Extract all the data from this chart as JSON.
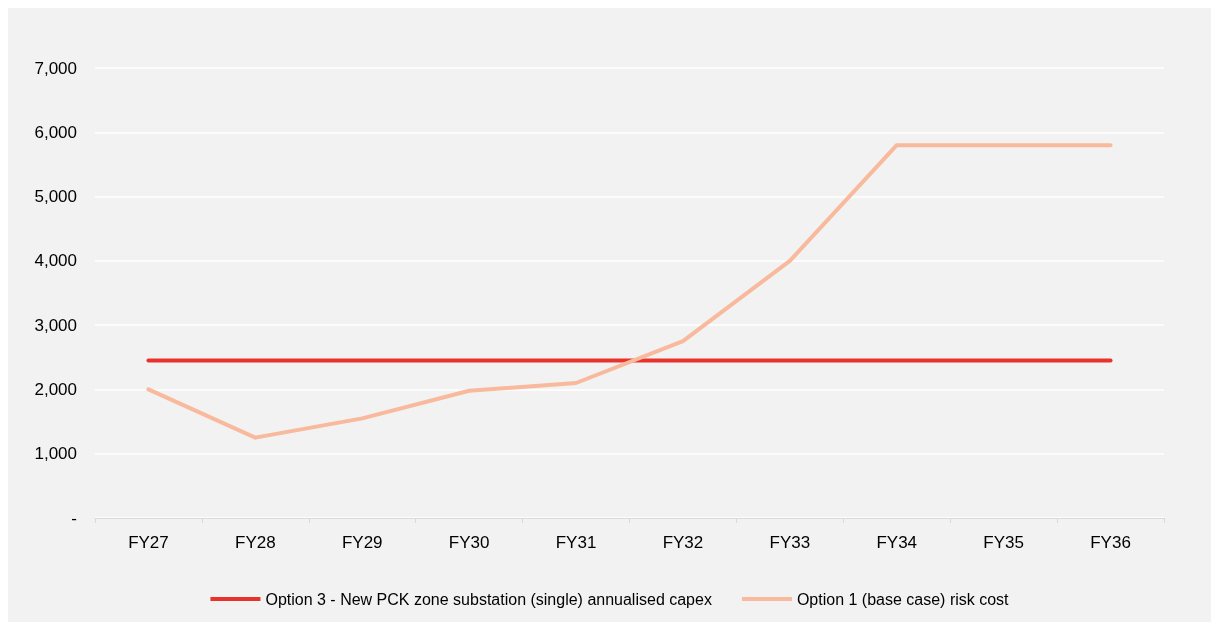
{
  "chart_data": {
    "type": "line",
    "categories": [
      "FY27",
      "FY28",
      "FY29",
      "FY30",
      "FY31",
      "FY32",
      "FY33",
      "FY34",
      "FY35",
      "FY36"
    ],
    "series": [
      {
        "name": "Option 3 - New PCK zone substation (single) annualised capex",
        "color": "#e8322c",
        "values": [
          2450,
          2450,
          2450,
          2450,
          2450,
          2450,
          2450,
          2450,
          2450,
          2450
        ]
      },
      {
        "name": "Option 1 (base case) risk cost",
        "color": "#f8b99c",
        "values": [
          2000,
          1250,
          1550,
          1980,
          2100,
          2750,
          4000,
          5800,
          5800,
          5800
        ]
      }
    ],
    "ylim": [
      0,
      7000
    ],
    "yticks": [
      {
        "value": 0,
        "label": "-"
      },
      {
        "value": 1000,
        "label": "1,000"
      },
      {
        "value": 2000,
        "label": "2,000"
      },
      {
        "value": 3000,
        "label": "3,000"
      },
      {
        "value": 4000,
        "label": "4,000"
      },
      {
        "value": 5000,
        "label": "5,000"
      },
      {
        "value": 6000,
        "label": "6,000"
      },
      {
        "value": 7000,
        "label": "7,000"
      }
    ],
    "grid": "y",
    "legend": "bottom",
    "marker": "none",
    "line_style": "solid"
  }
}
